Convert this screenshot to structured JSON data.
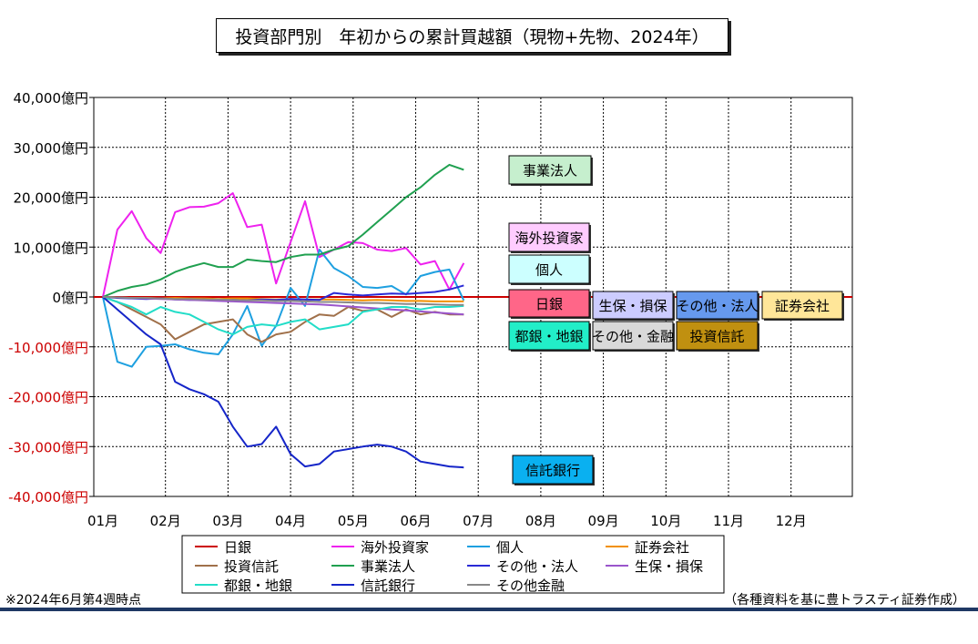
{
  "title": "投資部門別　年初からの累計買越額（現物+先物、2024年）",
  "note_left": "※2024年6月第4週時点",
  "note_right": "（各種資料を基に豊トラスティ証券作成）",
  "chart_data": {
    "type": "line",
    "title": "投資部門別　年初からの累計買越額（現物+先物、2024年）",
    "xlabel": "",
    "ylabel": "",
    "ylim": [
      -40000,
      40000
    ],
    "y_ticks": [
      40000,
      30000,
      20000,
      10000,
      0,
      -10000,
      -20000,
      -30000,
      -40000
    ],
    "y_tick_labels": [
      "40,000億円",
      "30,000億円",
      "20,000億円",
      "10,000億円",
      "0億円",
      "-10,000億円",
      "-20,000億円",
      "-30,000億円",
      "-40,000億円"
    ],
    "x_tick_labels": [
      "01月",
      "02月",
      "03月",
      "04月",
      "05月",
      "06月",
      "07月",
      "08月",
      "09月",
      "10月",
      "11月",
      "12月"
    ],
    "x_unit": "week",
    "grid": true,
    "legend_position": "bottom",
    "series": [
      {
        "name": "日銀",
        "color": "#cc0000",
        "values": [
          0,
          0,
          0,
          0,
          0,
          0,
          0,
          0,
          0,
          0,
          0,
          0,
          0,
          0,
          0,
          0,
          0,
          0,
          0,
          0,
          0,
          0,
          0,
          0,
          0,
          0
        ]
      },
      {
        "name": "海外投資家",
        "color": "#ee22ee",
        "values": [
          0,
          13500,
          17200,
          11800,
          8800,
          17000,
          18000,
          18100,
          18800,
          20800,
          14000,
          14500,
          2700,
          11000,
          19200,
          8000,
          9500,
          11000,
          10800,
          9500,
          9200,
          9800,
          6500,
          7200,
          1500,
          6800
        ]
      },
      {
        "name": "個人",
        "color": "#1ea0e0",
        "values": [
          0,
          -13000,
          -14000,
          -10000,
          -9800,
          -9500,
          -10500,
          -11200,
          -11500,
          -7500,
          -1800,
          -9800,
          -5800,
          1800,
          -1800,
          9500,
          5800,
          4200,
          2000,
          1800,
          2200,
          500,
          4200,
          5000,
          5500,
          -700
        ]
      },
      {
        "name": "証券会社",
        "color": "#f29000",
        "values": [
          0,
          -100,
          -200,
          -200,
          -300,
          -200,
          -300,
          -300,
          -400,
          -300,
          -300,
          -400,
          -500,
          -400,
          -500,
          -500,
          -500,
          -600,
          -700,
          -600,
          -700,
          -800,
          -800,
          -900,
          -900,
          -900
        ]
      },
      {
        "name": "投資信託",
        "color": "#a0704a",
        "values": [
          0,
          -1000,
          -2500,
          -4000,
          -5500,
          -8500,
          -7000,
          -5500,
          -5000,
          -4500,
          -7500,
          -9000,
          -7500,
          -7000,
          -5000,
          -3500,
          -3800,
          -2000,
          -2800,
          -2500,
          -4000,
          -2500,
          -3500,
          -3000,
          -3500,
          -3500
        ]
      },
      {
        "name": "事業法人",
        "color": "#20a050",
        "values": [
          0,
          1200,
          2000,
          2500,
          3500,
          5000,
          6000,
          6800,
          6000,
          6000,
          7500,
          7200,
          7000,
          8000,
          8500,
          8500,
          9500,
          10200,
          12500,
          15000,
          17500,
          20000,
          22000,
          24500,
          26500,
          25500
        ]
      },
      {
        "name": "その他・法人",
        "color": "#2a2ad6",
        "values": [
          0,
          -200,
          -300,
          -400,
          -300,
          -500,
          -600,
          -500,
          -700,
          -600,
          -700,
          -500,
          -600,
          -400,
          -500,
          -600,
          800,
          500,
          300,
          500,
          700,
          600,
          800,
          1000,
          1500,
          2300
        ]
      },
      {
        "name": "生保・損保",
        "color": "#9a55cc",
        "values": [
          0,
          -100,
          -200,
          -300,
          -400,
          -500,
          -600,
          -700,
          -800,
          -900,
          -1000,
          -1100,
          -1200,
          -1300,
          -1400,
          -1500,
          -1700,
          -1900,
          -2100,
          -2300,
          -2500,
          -2700,
          -2900,
          -3100,
          -3300,
          -3500
        ]
      },
      {
        "name": "都銀・地銀",
        "color": "#22ddc8",
        "values": [
          0,
          -1000,
          -2000,
          -3500,
          -2000,
          -3000,
          -3500,
          -5000,
          -6500,
          -7500,
          -6000,
          -5500,
          -5800,
          -5000,
          -4500,
          -6500,
          -6000,
          -5500,
          -3000,
          -2500,
          -2000,
          -2000,
          -2500,
          -2000,
          -2000,
          -1800
        ]
      },
      {
        "name": "信託銀行",
        "color": "#1525c8",
        "values": [
          0,
          -2500,
          -5000,
          -7500,
          -9500,
          -17000,
          -18500,
          -19500,
          -21000,
          -26000,
          -30000,
          -29500,
          -26000,
          -31500,
          -34000,
          -33500,
          -31000,
          -30500,
          -30000,
          -29600,
          -30000,
          -31000,
          -33000,
          -33500,
          -34000,
          -34200
        ]
      },
      {
        "name": "その他金融",
        "color": "#888888",
        "values": [
          0,
          -100,
          -200,
          -200,
          -300,
          -400,
          -400,
          -500,
          -500,
          -600,
          -700,
          -700,
          -800,
          -800,
          -900,
          -1000,
          -1000,
          -1100,
          -1200,
          -1200,
          -1300,
          -1400,
          -1400,
          -1500,
          -1600,
          -1600
        ]
      }
    ],
    "callouts": [
      {
        "text": "事業法人",
        "bg": "#c6efce"
      },
      {
        "text": "海外投資家",
        "bg": "#ffccff"
      },
      {
        "text": "個人",
        "bg": "#ccffff"
      },
      {
        "text": "日銀",
        "bg": "#ff6688"
      },
      {
        "text": "生保・損保",
        "bg": "#ccccff"
      },
      {
        "text": "その他・法人",
        "bg": "#6699ee"
      },
      {
        "text": "証券会社",
        "bg": "#ffe699"
      },
      {
        "text": "都銀・地銀",
        "bg": "#22eec8"
      },
      {
        "text": "その他・金融",
        "bg": "#d9d9d9"
      },
      {
        "text": "投資信託",
        "bg": "#c09010"
      },
      {
        "text": "信託銀行",
        "bg": "#0ab0f0"
      }
    ]
  }
}
